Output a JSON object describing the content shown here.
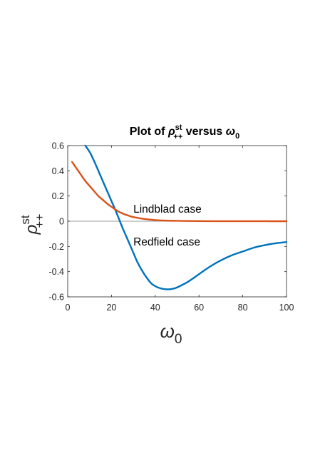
{
  "chart_data": {
    "type": "line",
    "title": {
      "prefix": "Plot of ",
      "symbol": "ρ",
      "superscript": "st",
      "subscript": "++",
      "middle": " versus ",
      "var": "ω",
      "var_sub": "0"
    },
    "xlabel": {
      "var": "ω",
      "sub": "0"
    },
    "ylabel": {
      "symbol": "ρ",
      "superscript": "st",
      "subscript": "++"
    },
    "xlim": [
      0,
      100
    ],
    "ylim": [
      -0.6,
      0.6
    ],
    "x_ticks": [
      0,
      20,
      40,
      60,
      80,
      100
    ],
    "x_tick_labels": [
      "0",
      "20",
      "40",
      "60",
      "80",
      "100"
    ],
    "y_ticks": [
      0.6,
      0.4,
      0.2,
      0,
      -0.2,
      -0.4,
      -0.6
    ],
    "y_tick_labels": [
      "0.6",
      "0.4",
      "0.2",
      "0",
      "-0.2",
      "-0.4",
      "-0.6"
    ],
    "grid": false,
    "zero_line": true,
    "series": [
      {
        "label": "Redfield case",
        "color": "#0072BD",
        "x": [
          8,
          10,
          12,
          15,
          18,
          20,
          22,
          25,
          28,
          30,
          32,
          35,
          38,
          40,
          42,
          44,
          46,
          48,
          50,
          55,
          60,
          65,
          70,
          75,
          80,
          85,
          90,
          95,
          100
        ],
        "y": [
          0.6,
          0.55,
          0.48,
          0.36,
          0.24,
          0.16,
          0.08,
          -0.05,
          -0.17,
          -0.25,
          -0.33,
          -0.42,
          -0.49,
          -0.515,
          -0.53,
          -0.538,
          -0.54,
          -0.536,
          -0.525,
          -0.48,
          -0.42,
          -0.36,
          -0.31,
          -0.27,
          -0.24,
          -0.21,
          -0.19,
          -0.175,
          -0.165
        ]
      },
      {
        "label": "Lindblad case",
        "color": "#D95319",
        "x": [
          2,
          4,
          6,
          8,
          10,
          12,
          14,
          16,
          18,
          20,
          22,
          24,
          26,
          28,
          30,
          35,
          40,
          45,
          50,
          55,
          60,
          70,
          80,
          90,
          100
        ],
        "y": [
          0.47,
          0.42,
          0.37,
          0.32,
          0.28,
          0.24,
          0.2,
          0.17,
          0.14,
          0.115,
          0.09,
          0.07,
          0.055,
          0.043,
          0.033,
          0.018,
          0.009,
          0.005,
          0.003,
          0.002,
          0.001,
          0.0005,
          0.0002,
          0.0001,
          0.0
        ]
      }
    ],
    "annotations": [
      {
        "text": "Lindblad case",
        "x": 30,
        "y": 0.095
      },
      {
        "text": "Redfield case",
        "x": 30,
        "y": -0.165
      }
    ]
  }
}
